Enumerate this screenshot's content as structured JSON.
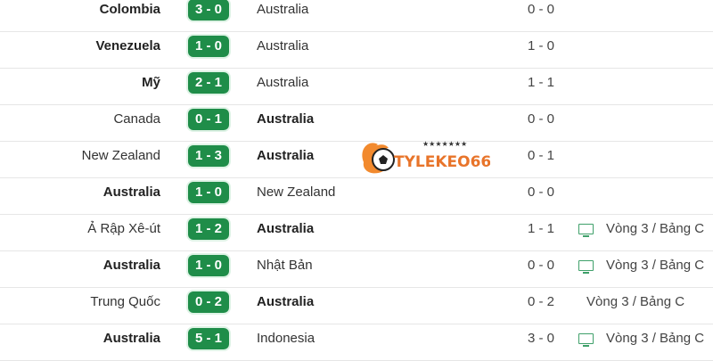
{
  "matches": [
    {
      "home": "Colombia",
      "home_bold": true,
      "score": "3 - 0",
      "away": "Australia",
      "away_bold": false,
      "ht": "0 - 0",
      "tv": false,
      "round": ""
    },
    {
      "home": "Venezuela",
      "home_bold": true,
      "score": "1 - 0",
      "away": "Australia",
      "away_bold": false,
      "ht": "1 - 0",
      "tv": false,
      "round": ""
    },
    {
      "home": "Mỹ",
      "home_bold": true,
      "score": "2 - 1",
      "away": "Australia",
      "away_bold": false,
      "ht": "1 - 1",
      "tv": false,
      "round": ""
    },
    {
      "home": "Canada",
      "home_bold": false,
      "score": "0 - 1",
      "away": "Australia",
      "away_bold": true,
      "ht": "0 - 0",
      "tv": false,
      "round": ""
    },
    {
      "home": "New Zealand",
      "home_bold": false,
      "score": "1 - 3",
      "away": "Australia",
      "away_bold": true,
      "ht": "0 - 1",
      "tv": false,
      "round": ""
    },
    {
      "home": "Australia",
      "home_bold": true,
      "score": "1 - 0",
      "away": "New Zealand",
      "away_bold": false,
      "ht": "0 - 0",
      "tv": false,
      "round": ""
    },
    {
      "home": "Ả Rập Xê-út",
      "home_bold": false,
      "score": "1 - 2",
      "away": "Australia",
      "away_bold": true,
      "ht": "1 - 1",
      "tv": true,
      "round": "Vòng 3 / Bảng C"
    },
    {
      "home": "Australia",
      "home_bold": true,
      "score": "1 - 0",
      "away": "Nhật Bản",
      "away_bold": false,
      "ht": "0 - 0",
      "tv": true,
      "round": "Vòng 3 / Bảng C"
    },
    {
      "home": "Trung Quốc",
      "home_bold": false,
      "score": "0 - 2",
      "away": "Australia",
      "away_bold": true,
      "ht": "0 - 2",
      "tv": false,
      "round": "Vòng 3 / Bảng C"
    },
    {
      "home": "Australia",
      "home_bold": true,
      "score": "5 - 1",
      "away": "Indonesia",
      "away_bold": false,
      "ht": "3 - 0",
      "tv": true,
      "round": "Vòng 3 / Bảng C"
    }
  ],
  "watermark": {
    "text": "TYLEKEO66",
    "color": "#e8742a"
  },
  "colors": {
    "score_badge": "#1f8d49",
    "tv_icon": "#3fa06a"
  }
}
